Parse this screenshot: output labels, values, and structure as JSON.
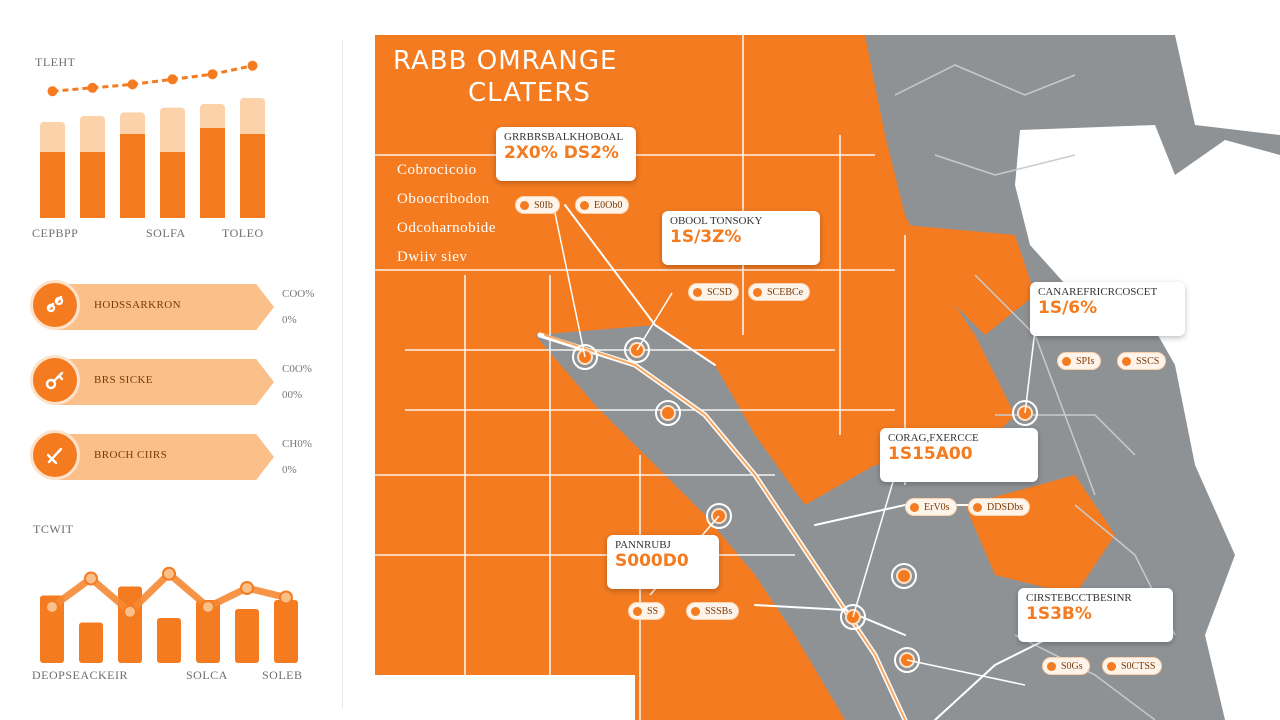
{
  "sidebar": {
    "top_chart": {
      "title": "TLEHT",
      "x_labels": [
        "CEPBPP",
        "SOLFA",
        "TOLEO"
      ],
      "bars_dark": [
        0.55,
        0.55,
        0.7,
        0.55,
        0.75,
        0.7
      ],
      "bars_light": [
        0.8,
        0.85,
        0.88,
        0.92,
        0.95,
        1.0
      ],
      "trend": [
        0.2,
        0.3,
        0.4,
        0.55,
        0.7,
        0.95
      ]
    },
    "items": [
      {
        "label": "HODSSARKRON",
        "pct_top": "COO%",
        "pct_bottom": "0%",
        "icon": "link-icon"
      },
      {
        "label": "BRS SICKE",
        "pct_top": "C0O%",
        "pct_bottom": "00%",
        "icon": "key-icon"
      },
      {
        "label": "BROCH CIIRS",
        "pct_top": "CH0%",
        "pct_bottom": "0%",
        "icon": "wrench-icon"
      }
    ],
    "bottom_chart": {
      "title": "TCWIT",
      "x_labels": [
        "DEOPSEACKEIR",
        "SOLCA",
        "SOLEB"
      ],
      "bars": [
        0.75,
        0.45,
        0.85,
        0.5,
        0.7,
        0.6,
        0.7
      ],
      "line": [
        0.4,
        0.7,
        0.35,
        0.75,
        0.4,
        0.6,
        0.5
      ]
    }
  },
  "map": {
    "title_line1": "RABB OMRANGE",
    "title_line2": "CLATERS",
    "subtitles": [
      "Cobrocicoio",
      "Oboocribodon",
      "Odcoharnobide",
      "Dwiiv siev"
    ],
    "callouts": [
      {
        "title": "GRRBRSBALKHOBOAL",
        "value": "2X0% DS2%",
        "pills": [
          "S0Ib",
          "E0Ob0"
        ]
      },
      {
        "title": "OBOOL TONSOKY",
        "value": "1S/3Z%",
        "pills": [
          "SCSD",
          "SCEBCe"
        ]
      },
      {
        "title": "CANAREFRICRCOSCET",
        "value": "1S/6%",
        "pills": [
          "SPIs",
          "SSCS"
        ]
      },
      {
        "title": "CORAG,FXERCCE",
        "value": "1S15A00",
        "pills": [
          "ErV0s",
          "DDSDbs"
        ]
      },
      {
        "title": "PANNRUBJ",
        "value": "S000D0",
        "pills": [
          "SS",
          "SSSBs"
        ]
      },
      {
        "title": "CIRSTEBCCTBESINR",
        "value": "1S3B%",
        "pills": [
          "S0Gs",
          "S0CTSS"
        ]
      }
    ]
  },
  "colors": {
    "accent": "#f47b20",
    "accent_light": "#fbbf8a",
    "gray": "#8f9295",
    "white": "#ffffff"
  }
}
